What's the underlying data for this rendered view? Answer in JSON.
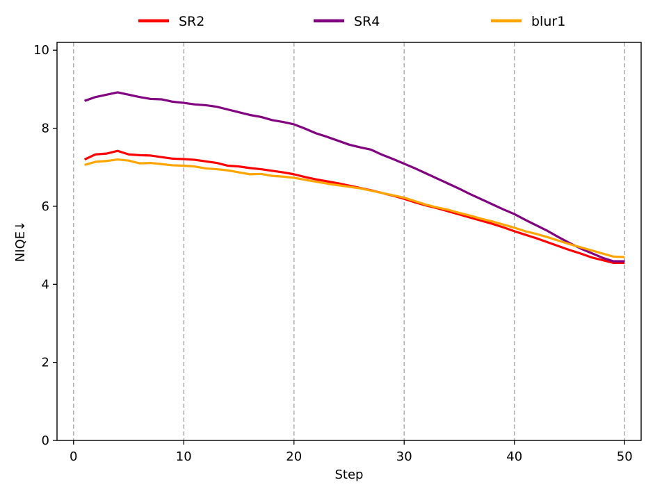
{
  "chart_data": {
    "type": "line",
    "title": "",
    "xlabel": "Step",
    "ylabel": "NIQE↓",
    "xlim": [
      -1.5,
      51.5
    ],
    "ylim": [
      0,
      10.2
    ],
    "xticks": [
      0,
      10,
      20,
      30,
      40,
      50
    ],
    "yticks": [
      0,
      2,
      4,
      6,
      8,
      10
    ],
    "xtick_labels": [
      "0",
      "10",
      "20",
      "30",
      "40",
      "50"
    ],
    "ytick_labels": [
      "0",
      "2",
      "4",
      "6",
      "8",
      "10"
    ],
    "grid": "vertical dashed lines at x ticks",
    "legend_position": "top-center, above plot",
    "x": [
      1,
      2,
      3,
      4,
      5,
      6,
      7,
      8,
      9,
      10,
      11,
      12,
      13,
      14,
      15,
      16,
      17,
      18,
      19,
      20,
      21,
      22,
      23,
      24,
      25,
      26,
      27,
      28,
      29,
      30,
      31,
      32,
      33,
      34,
      35,
      36,
      37,
      38,
      39,
      40,
      41,
      42,
      43,
      44,
      45,
      46,
      47,
      48,
      49,
      50
    ],
    "series": [
      {
        "name": "SR2",
        "color": "#ff0000",
        "values": [
          7.2,
          7.33,
          7.35,
          7.42,
          7.33,
          7.31,
          7.3,
          7.26,
          7.22,
          7.21,
          7.19,
          7.15,
          7.11,
          7.04,
          7.02,
          6.98,
          6.95,
          6.91,
          6.87,
          6.82,
          6.75,
          6.69,
          6.64,
          6.59,
          6.53,
          6.47,
          6.41,
          6.34,
          6.27,
          6.19,
          6.1,
          6.02,
          5.95,
          5.87,
          5.79,
          5.71,
          5.63,
          5.55,
          5.46,
          5.36,
          5.27,
          5.18,
          5.08,
          4.98,
          4.88,
          4.79,
          4.69,
          4.62,
          4.55,
          4.55
        ]
      },
      {
        "name": "SR4",
        "color": "#800080",
        "values": [
          8.7,
          8.8,
          8.86,
          8.92,
          8.86,
          8.8,
          8.75,
          8.74,
          8.68,
          8.65,
          8.61,
          8.59,
          8.55,
          8.48,
          8.41,
          8.34,
          8.29,
          8.21,
          8.16,
          8.1,
          7.99,
          7.87,
          7.78,
          7.68,
          7.58,
          7.51,
          7.45,
          7.32,
          7.21,
          7.09,
          6.97,
          6.84,
          6.71,
          6.58,
          6.45,
          6.31,
          6.18,
          6.05,
          5.92,
          5.8,
          5.65,
          5.51,
          5.37,
          5.21,
          5.06,
          4.92,
          4.8,
          4.68,
          4.59,
          4.59
        ]
      },
      {
        "name": "blur1",
        "color": "#ffa500",
        "values": [
          7.06,
          7.14,
          7.16,
          7.2,
          7.17,
          7.1,
          7.11,
          7.08,
          7.05,
          7.04,
          7.02,
          6.97,
          6.95,
          6.92,
          6.87,
          6.82,
          6.83,
          6.78,
          6.76,
          6.73,
          6.68,
          6.63,
          6.58,
          6.54,
          6.5,
          6.46,
          6.4,
          6.34,
          6.28,
          6.22,
          6.13,
          6.04,
          5.97,
          5.91,
          5.83,
          5.76,
          5.68,
          5.61,
          5.53,
          5.45,
          5.36,
          5.29,
          5.21,
          5.12,
          5.03,
          4.95,
          4.87,
          4.79,
          4.71,
          4.7
        ]
      }
    ]
  }
}
